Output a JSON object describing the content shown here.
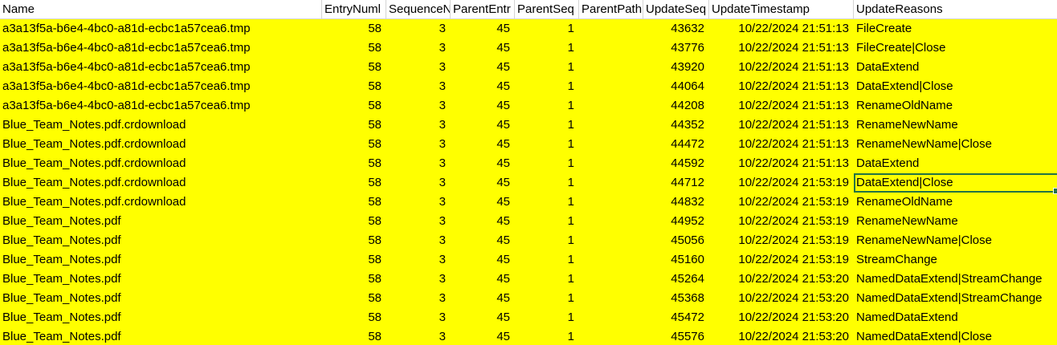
{
  "headers": [
    "Name",
    "EntryNuml",
    "SequenceN",
    "ParentEntr",
    "ParentSeq",
    "ParentPath",
    "UpdateSeq",
    "UpdateTimestamp",
    "UpdateReasons"
  ],
  "rows": [
    [
      "a3a13f5a-b6e4-4bc0-a81d-ecbc1a57cea6.tmp",
      "58",
      "3",
      "45",
      "1",
      "",
      "43632",
      "10/22/2024 21:51:13",
      "FileCreate"
    ],
    [
      "a3a13f5a-b6e4-4bc0-a81d-ecbc1a57cea6.tmp",
      "58",
      "3",
      "45",
      "1",
      "",
      "43776",
      "10/22/2024 21:51:13",
      "FileCreate|Close"
    ],
    [
      "a3a13f5a-b6e4-4bc0-a81d-ecbc1a57cea6.tmp",
      "58",
      "3",
      "45",
      "1",
      "",
      "43920",
      "10/22/2024 21:51:13",
      "DataExtend"
    ],
    [
      "a3a13f5a-b6e4-4bc0-a81d-ecbc1a57cea6.tmp",
      "58",
      "3",
      "45",
      "1",
      "",
      "44064",
      "10/22/2024 21:51:13",
      "DataExtend|Close"
    ],
    [
      "a3a13f5a-b6e4-4bc0-a81d-ecbc1a57cea6.tmp",
      "58",
      "3",
      "45",
      "1",
      "",
      "44208",
      "10/22/2024 21:51:13",
      "RenameOldName"
    ],
    [
      "Blue_Team_Notes.pdf.crdownload",
      "58",
      "3",
      "45",
      "1",
      "",
      "44352",
      "10/22/2024 21:51:13",
      "RenameNewName"
    ],
    [
      "Blue_Team_Notes.pdf.crdownload",
      "58",
      "3",
      "45",
      "1",
      "",
      "44472",
      "10/22/2024 21:51:13",
      "RenameNewName|Close"
    ],
    [
      "Blue_Team_Notes.pdf.crdownload",
      "58",
      "3",
      "45",
      "1",
      "",
      "44592",
      "10/22/2024 21:51:13",
      "DataExtend"
    ],
    [
      "Blue_Team_Notes.pdf.crdownload",
      "58",
      "3",
      "45",
      "1",
      "",
      "44712",
      "10/22/2024 21:53:19",
      "DataExtend|Close"
    ],
    [
      "Blue_Team_Notes.pdf.crdownload",
      "58",
      "3",
      "45",
      "1",
      "",
      "44832",
      "10/22/2024 21:53:19",
      "RenameOldName"
    ],
    [
      "Blue_Team_Notes.pdf",
      "58",
      "3",
      "45",
      "1",
      "",
      "44952",
      "10/22/2024 21:53:19",
      "RenameNewName"
    ],
    [
      "Blue_Team_Notes.pdf",
      "58",
      "3",
      "45",
      "1",
      "",
      "45056",
      "10/22/2024 21:53:19",
      "RenameNewName|Close"
    ],
    [
      "Blue_Team_Notes.pdf",
      "58",
      "3",
      "45",
      "1",
      "",
      "45160",
      "10/22/2024 21:53:19",
      "StreamChange"
    ],
    [
      "Blue_Team_Notes.pdf",
      "58",
      "3",
      "45",
      "1",
      "",
      "45264",
      "10/22/2024 21:53:20",
      "NamedDataExtend|StreamChange"
    ],
    [
      "Blue_Team_Notes.pdf",
      "58",
      "3",
      "45",
      "1",
      "",
      "45368",
      "10/22/2024 21:53:20",
      "NamedDataExtend|StreamChange"
    ],
    [
      "Blue_Team_Notes.pdf",
      "58",
      "3",
      "45",
      "1",
      "",
      "45472",
      "10/22/2024 21:53:20",
      "NamedDataExtend"
    ],
    [
      "Blue_Team_Notes.pdf",
      "58",
      "3",
      "45",
      "1",
      "",
      "45576",
      "10/22/2024 21:53:20",
      "NamedDataExtend|Close"
    ]
  ],
  "selected_cell": {
    "row": 8,
    "col": 8
  },
  "colors": {
    "highlight": "#ffff00",
    "selection": "#217346",
    "gridline": "#d4d4d4"
  }
}
